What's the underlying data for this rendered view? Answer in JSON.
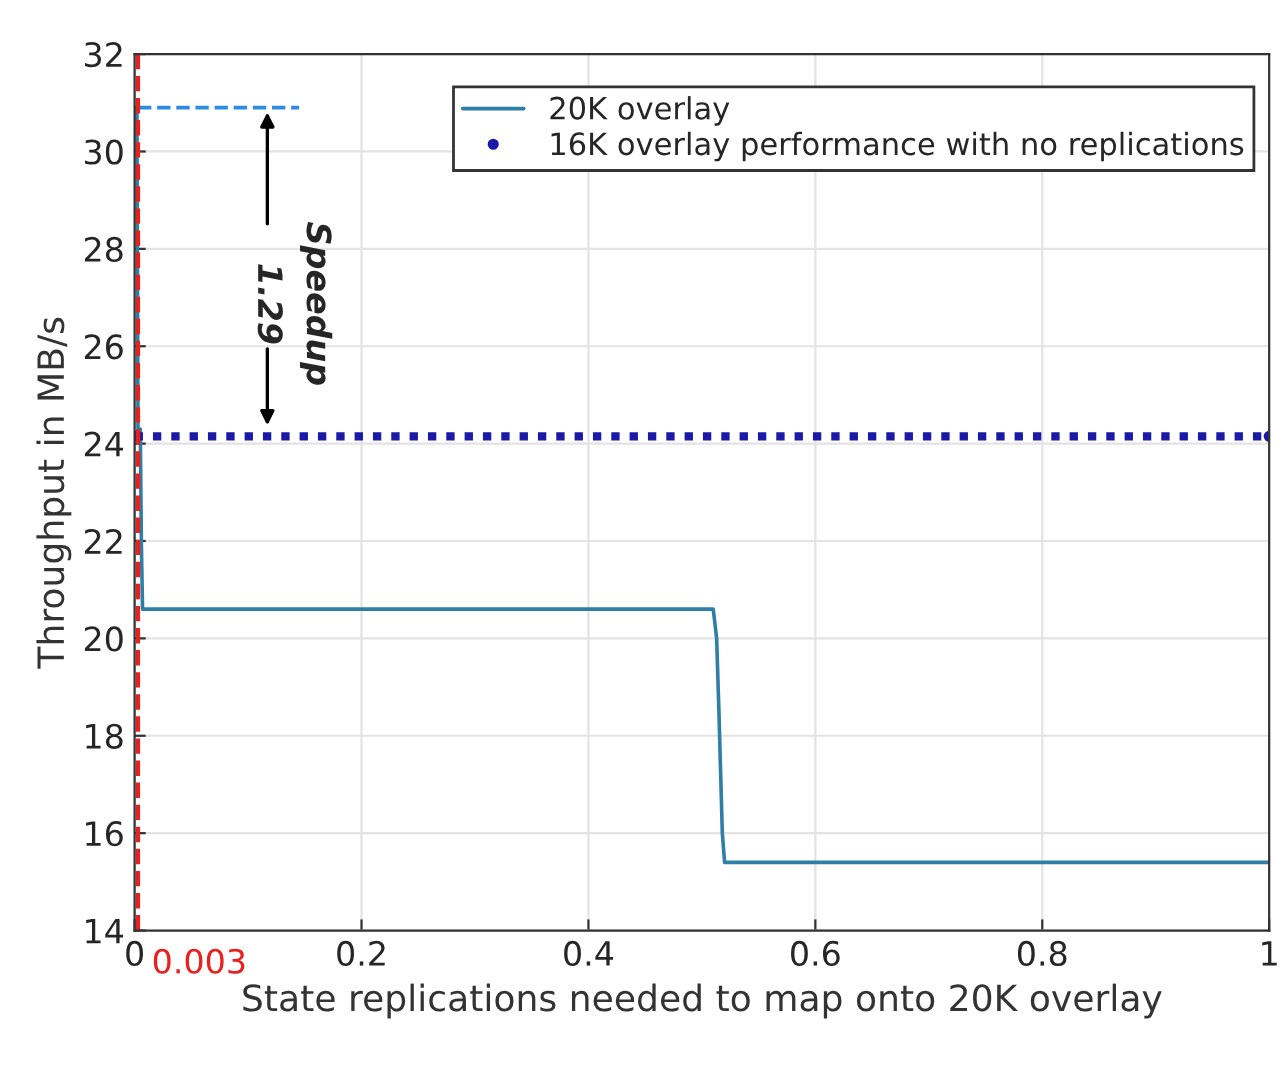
{
  "chart_data": {
    "type": "line",
    "xlabel": "State replications needed to map onto 20K overlay",
    "ylabel": "Throughput in MB/s",
    "series": [
      {
        "name": "20K overlay",
        "color": "#2e7ea6",
        "line_style": "solid",
        "marker": "none",
        "x": [
          0,
          0.002,
          0.003,
          0.005,
          0.006,
          0.007,
          0.51,
          0.513,
          0.515,
          0.518,
          0.52,
          1
        ],
        "values": [
          30.9,
          30.9,
          24.3,
          24.3,
          21.9,
          20.6,
          20.6,
          20.0,
          18.5,
          16.0,
          15.4,
          15.4
        ]
      },
      {
        "name": "16K overlay performance with no replications",
        "color": "#1a1aa6",
        "line_style": "dotted",
        "marker": "circle",
        "x": [
          0,
          1
        ],
        "values": [
          24.15,
          24.15
        ]
      },
      {
        "color": "#2e8ce0",
        "line_style": "dashed",
        "marker": "none",
        "x": [
          0.003,
          0.145
        ],
        "values": [
          30.9,
          30.9
        ]
      }
    ],
    "ref_lines": [
      {
        "axis": "x",
        "value": 0.003,
        "label": "0.003",
        "color": "#e8211f",
        "line_style": "dashed"
      }
    ],
    "annotations": [
      "Speedup",
      "1.29"
    ],
    "xlim": [
      0,
      1
    ],
    "ylim": [
      14,
      32
    ],
    "xticks": [
      0,
      0.2,
      0.4,
      0.6,
      0.8,
      1
    ],
    "yticks": [
      14,
      16,
      18,
      20,
      22,
      24,
      26,
      28,
      30,
      32
    ],
    "grid": true,
    "legend": "top right"
  }
}
